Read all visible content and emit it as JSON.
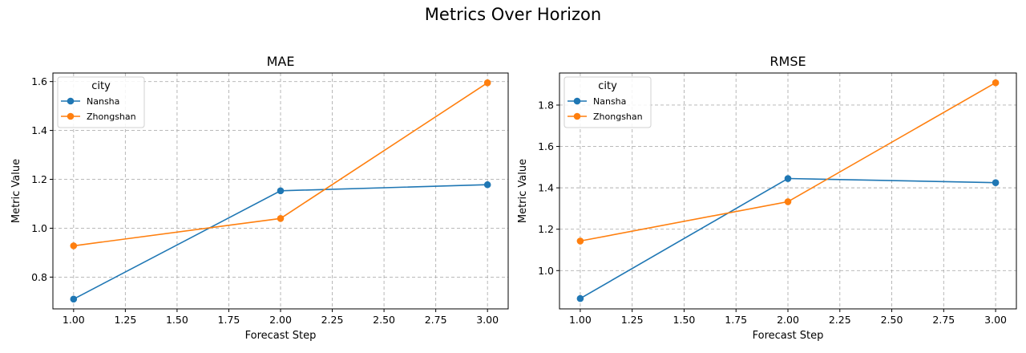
{
  "figure": {
    "title": "Metrics Over Horizon"
  },
  "chart_data": [
    {
      "type": "line",
      "title": "MAE",
      "xlabel": "Forecast Step",
      "ylabel": "Metric Value",
      "xlim": [
        0.9,
        3.1
      ],
      "ylim": [
        0.67,
        1.635
      ],
      "x_ticks": [
        1.0,
        1.25,
        1.5,
        1.75,
        2.0,
        2.25,
        2.5,
        2.75,
        3.0
      ],
      "x_tick_labels": [
        "1.00",
        "1.25",
        "1.50",
        "1.75",
        "2.00",
        "2.25",
        "2.50",
        "2.75",
        "3.00"
      ],
      "y_ticks": [
        0.8,
        1.0,
        1.2,
        1.4,
        1.6
      ],
      "y_tick_labels": [
        "0.8",
        "1.0",
        "1.2",
        "1.4",
        "1.6"
      ],
      "grid": true,
      "legend": {
        "title": "city",
        "position": "top-left"
      },
      "x": [
        1,
        2,
        3
      ],
      "series": [
        {
          "name": "Nansha",
          "color": "#1f77b4",
          "values": [
            0.71,
            1.153,
            1.178
          ]
        },
        {
          "name": "Zhongshan",
          "color": "#ff7f0e",
          "values": [
            0.928,
            1.04,
            1.595
          ]
        }
      ]
    },
    {
      "type": "line",
      "title": "RMSE",
      "xlabel": "Forecast Step",
      "ylabel": "Metric Value",
      "xlim": [
        0.9,
        3.1
      ],
      "ylim": [
        0.815,
        1.955
      ],
      "x_ticks": [
        1.0,
        1.25,
        1.5,
        1.75,
        2.0,
        2.25,
        2.5,
        2.75,
        3.0
      ],
      "x_tick_labels": [
        "1.00",
        "1.25",
        "1.50",
        "1.75",
        "2.00",
        "2.25",
        "2.50",
        "2.75",
        "3.00"
      ],
      "y_ticks": [
        1.0,
        1.2,
        1.4,
        1.6,
        1.8
      ],
      "y_tick_labels": [
        "1.0",
        "1.2",
        "1.4",
        "1.6",
        "1.8"
      ],
      "grid": true,
      "legend": {
        "title": "city",
        "position": "top-left"
      },
      "x": [
        1,
        2,
        3
      ],
      "series": [
        {
          "name": "Nansha",
          "color": "#1f77b4",
          "values": [
            0.865,
            1.445,
            1.425
          ]
        },
        {
          "name": "Zhongshan",
          "color": "#ff7f0e",
          "values": [
            1.143,
            1.333,
            1.908
          ]
        }
      ]
    }
  ]
}
